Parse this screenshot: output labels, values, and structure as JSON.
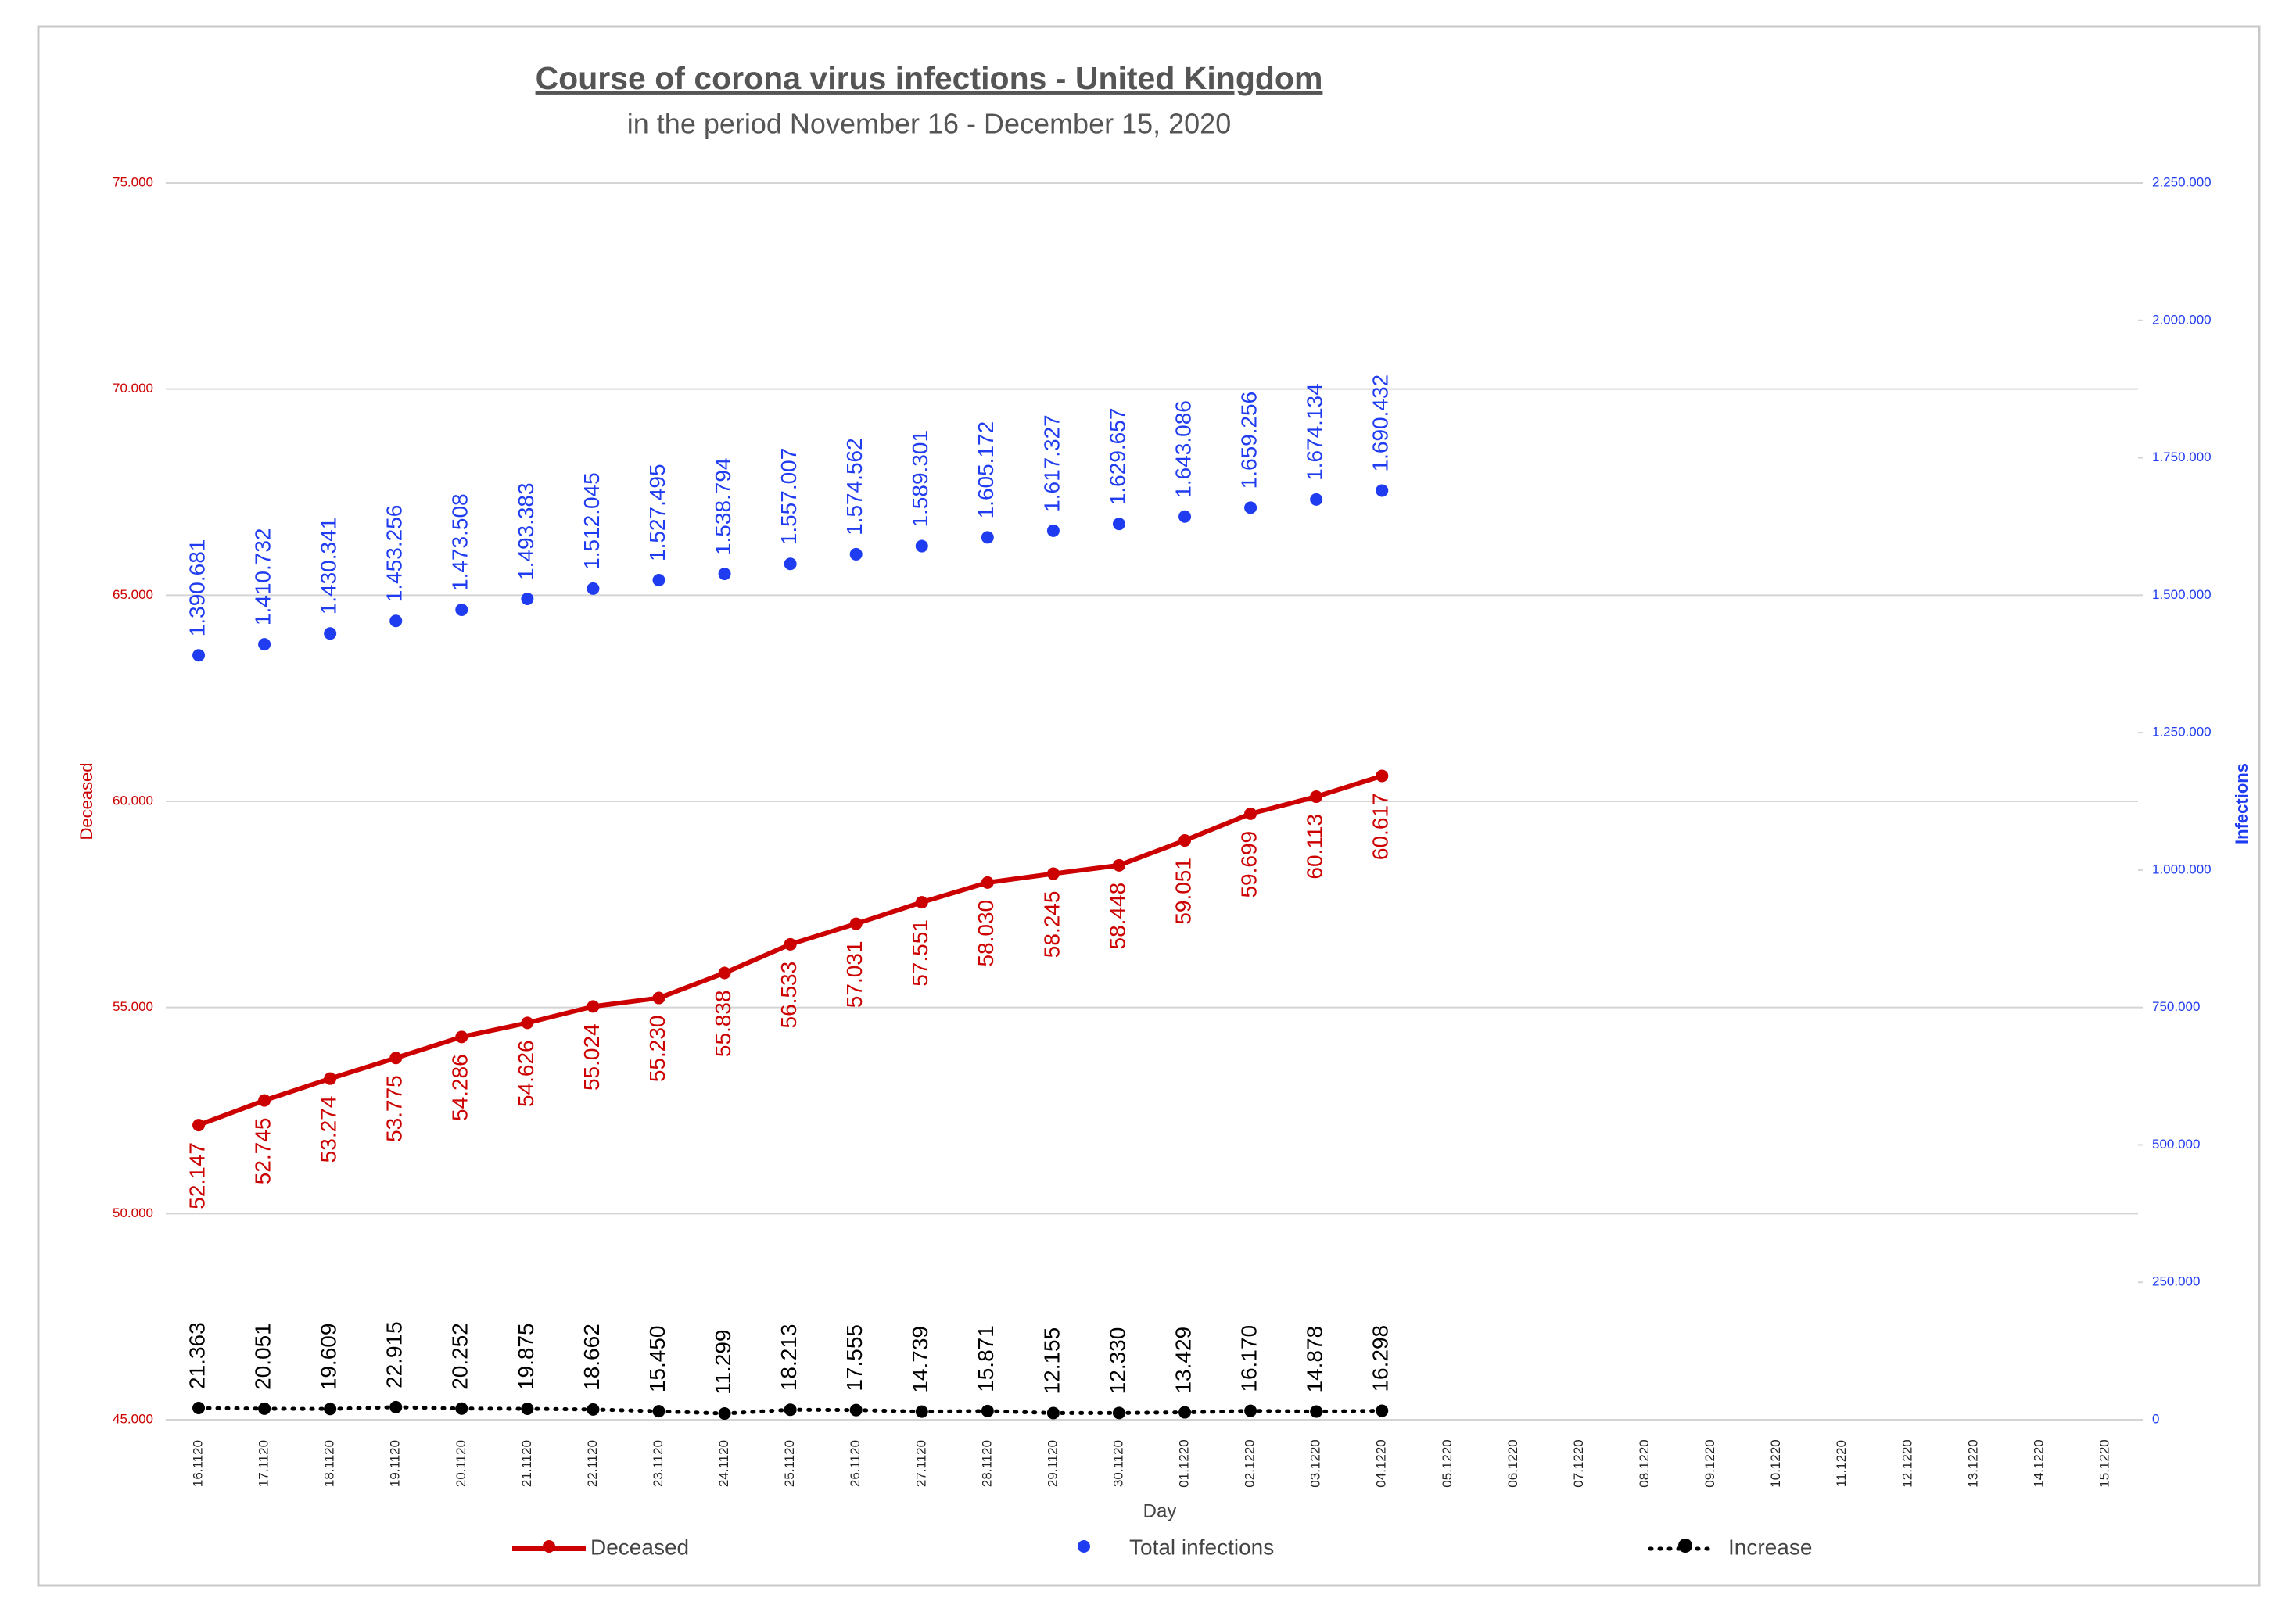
{
  "chart_data": {
    "type": "line",
    "title": "Course of corona virus infections - United Kingdom",
    "subtitle": "in the period November 16 - December 15, 2020",
    "x_label": "Day",
    "y_label": "Deceased",
    "y2_label": "Infections",
    "categories": [
      "16.1120",
      "17.1120",
      "18.1120",
      "19.1120",
      "20.1120",
      "21.1120",
      "22.1120",
      "23.1120",
      "24.1120",
      "25.1120",
      "26.1120",
      "27.1120",
      "28.1120",
      "29.1120",
      "30.1120",
      "01.1220",
      "02.1220",
      "03.1220",
      "04.1220",
      "05.1220",
      "06.1220",
      "07.1220",
      "08.1220",
      "09.1220",
      "10.1220",
      "11.1220",
      "12.1220",
      "13.1220",
      "14.1220",
      "15.1220"
    ],
    "ylim": [
      45000,
      75000
    ],
    "yticks": [
      {
        "value": 45000,
        "label": "45.000"
      },
      {
        "value": 50000,
        "label": "50.000"
      },
      {
        "value": 55000,
        "label": "55.000"
      },
      {
        "value": 60000,
        "label": "60.000"
      },
      {
        "value": 65000,
        "label": "65.000"
      },
      {
        "value": 70000,
        "label": "70.000"
      },
      {
        "value": 75000,
        "label": "75.000"
      }
    ],
    "y2lim": [
      0,
      2250000
    ],
    "y2ticks": [
      0,
      {
        "value": 250000,
        "label": "250.000"
      },
      {
        "value": 500000,
        "label": "500.000"
      },
      {
        "value": 750000,
        "label": "750.000"
      },
      {
        "value": 1000000,
        "label": "1.000.000"
      },
      {
        "value": 1250000,
        "label": "1.250.000"
      },
      {
        "value": 1500000,
        "label": "1.500.000"
      },
      {
        "value": 1750000,
        "label": "1.750.000"
      },
      {
        "value": 2000000,
        "label": "2.000.000"
      },
      {
        "value": 2250000,
        "label": "2.250.000"
      }
    ],
    "grid": true,
    "legend": "bottom",
    "series": [
      {
        "name": "Deceased",
        "color": "#cc0000",
        "line": "solid",
        "label_side": "below",
        "values": [
          52147,
          52745,
          53274,
          53775,
          54286,
          54626,
          55024,
          55230,
          55838,
          56533,
          57031,
          57551,
          58030,
          58245,
          58448,
          59051,
          59699,
          60113,
          60617,
          null,
          null,
          null,
          null,
          null,
          null,
          null,
          null,
          null,
          null,
          null
        ],
        "value_labels": [
          "52.147",
          "52.745",
          "53.274",
          "53.775",
          "54.286",
          "54.626",
          "55.024",
          "55.230",
          "55.838",
          "56.533",
          "57.031",
          "57.551",
          "58.030",
          "58.245",
          "58.448",
          "59.051",
          "59.699",
          "60.113",
          "60.617",
          null,
          null,
          null,
          null,
          null,
          null,
          null,
          null,
          null,
          null,
          null
        ]
      },
      {
        "name": "Total infections",
        "color": "#1f3cf0",
        "line": "none",
        "axis": "y2",
        "label_side": "above",
        "values": [
          1390681,
          1410732,
          1430341,
          1453256,
          1473508,
          1493383,
          1512045,
          1527495,
          1538794,
          1557007,
          1574562,
          1589301,
          1605172,
          1617327,
          1629657,
          1643086,
          1659256,
          1674134,
          1690432,
          null,
          null,
          null,
          null,
          null,
          null,
          null,
          null,
          null,
          null,
          null
        ],
        "value_labels": [
          "1.390.681",
          "1.410.732",
          "1.430.341",
          "1.453.256",
          "1.473.508",
          "1.493.383",
          "1.512.045",
          "1.527.495",
          "1.538.794",
          "1.557.007",
          "1.574.562",
          "1.589.301",
          "1.605.172",
          "1.617.327",
          "1.629.657",
          "1.643.086",
          "1.659.256",
          "1.674.134",
          "1.690.432",
          null,
          null,
          null,
          null,
          null,
          null,
          null,
          null,
          null,
          null,
          null
        ]
      },
      {
        "name": "Increase",
        "color": "#000000",
        "line": "dotted",
        "axis": "y2",
        "label_side": "above",
        "values": [
          21363,
          20051,
          19609,
          22915,
          20252,
          19875,
          18662,
          15450,
          11299,
          18213,
          17555,
          14739,
          15871,
          12155,
          12330,
          13429,
          16170,
          14878,
          16298,
          null,
          null,
          null,
          null,
          null,
          null,
          null,
          null,
          null,
          null,
          null
        ],
        "value_labels": [
          "21.363",
          "20.051",
          "19.609",
          "22.915",
          "20.252",
          "19.875",
          "18.662",
          "15.450",
          "11.299",
          "18.213",
          "17.555",
          "14.739",
          "15.871",
          "12.155",
          "12.330",
          "13.429",
          "16.170",
          "14.878",
          "16.298",
          null,
          null,
          null,
          null,
          null,
          null,
          null,
          null,
          null,
          null,
          null
        ]
      }
    ]
  }
}
